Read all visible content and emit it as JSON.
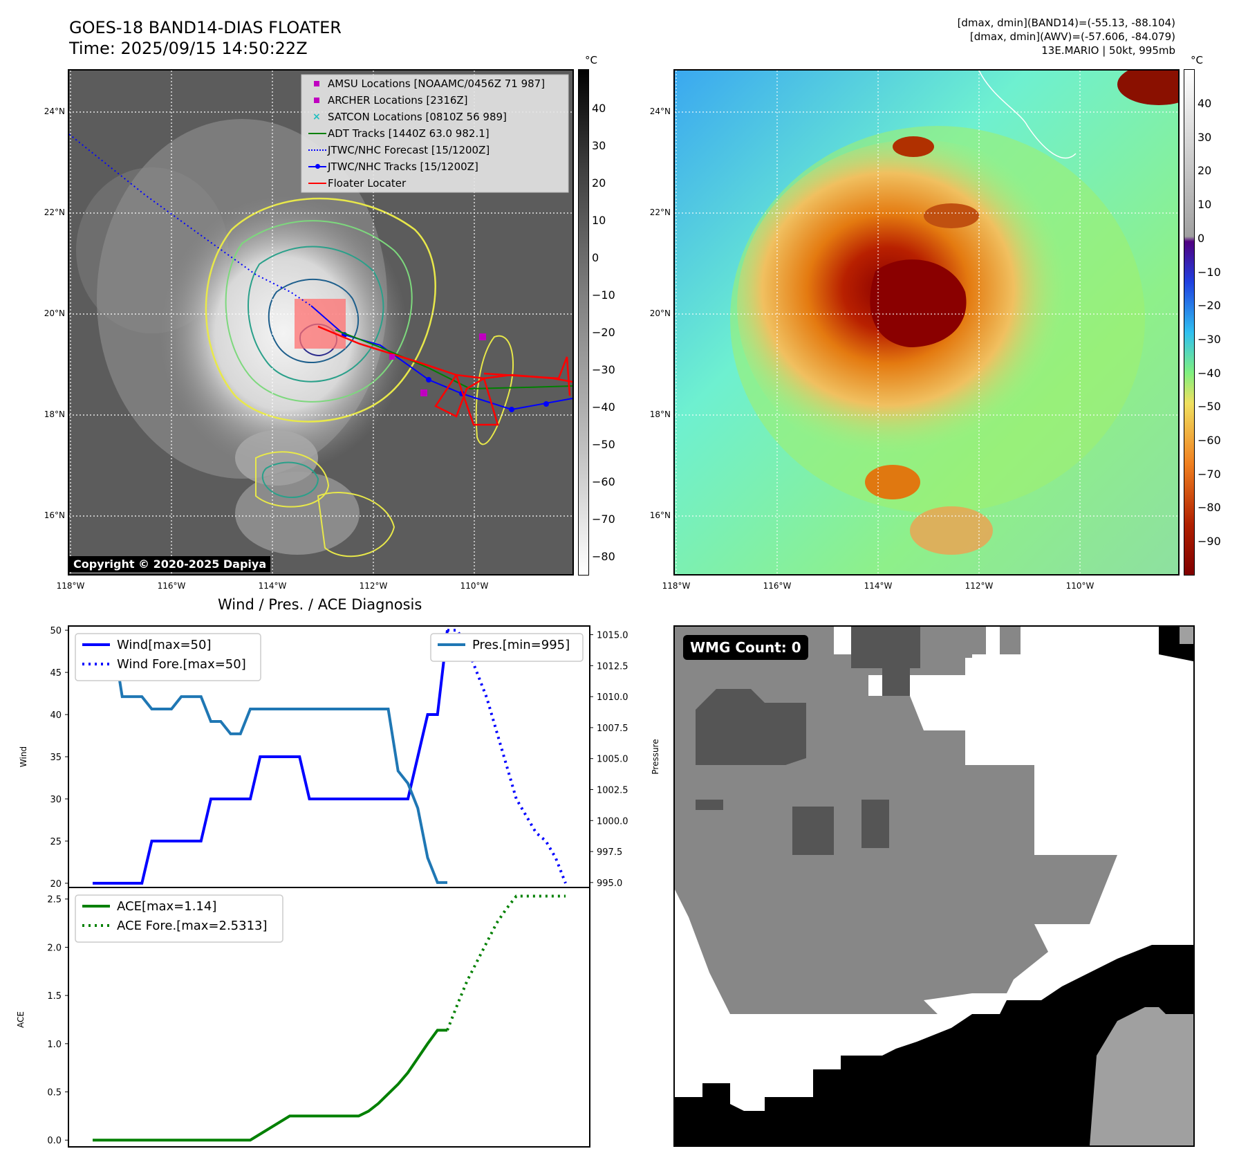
{
  "header": {
    "title_line1": "GOES-18 BAND14-DIAS FLOATER",
    "title_line2": "Time: 2025/09/15 14:50:22Z",
    "info_line1": "[dmax, dmin](BAND14)=(-55.13, -88.104)",
    "info_line2": "[dmax, dmin](AWV)=(-57.606, -84.079)",
    "info_line3": "13E.MARIO | 50kt, 995mb"
  },
  "copyright": "Copyright © 2020-2025 Dapiya",
  "colors": {
    "amsu": "#c000c0",
    "archer": "#c000c0",
    "satcon": "#20c0c0",
    "adt": "#008000",
    "jtwc_fore": "#0000ff",
    "jtwc": "#0000ff",
    "floater": "#ff0000",
    "wind": "#0000ff",
    "pres": "#1f77b4",
    "ace": "#008000"
  },
  "map": {
    "lon_ticks": [
      "118°W",
      "116°W",
      "114°W",
      "112°W",
      "110°W"
    ],
    "lat_ticks": [
      "24°N",
      "22°N",
      "20°N",
      "18°N",
      "16°N"
    ],
    "legend": [
      {
        "label": "AMSU Locations [NOAAMC/0456Z 71 987]",
        "marker": "square",
        "color": "#c000c0"
      },
      {
        "label": "ARCHER Locations [2316Z]",
        "marker": "square",
        "color": "#c000c0"
      },
      {
        "label": "SATCON Locations [0810Z 56 989]",
        "marker": "x",
        "color": "#20c0c0"
      },
      {
        "label": "ADT Tracks [1440Z 63.0 982.1]",
        "marker": "line",
        "color": "#008000"
      },
      {
        "label": "JTWC/NHC Forecast [15/1200Z]",
        "marker": "dotted",
        "color": "#0000ff"
      },
      {
        "label": "JTWC/NHC Tracks [15/1200Z]",
        "marker": "linedot",
        "color": "#0000ff"
      },
      {
        "label": "Floater Locater",
        "marker": "line",
        "color": "#ff0000"
      }
    ],
    "gray_cbar_unit": "°C",
    "gray_cbar_ticks": [
      "40",
      "30",
      "20",
      "10",
      "0",
      "−10",
      "−20",
      "−30",
      "−40",
      "−50",
      "−60",
      "−70",
      "−80"
    ],
    "color_cbar_unit": "°C",
    "color_cbar_ticks": [
      "40",
      "30",
      "20",
      "10",
      "0",
      "−10",
      "−20",
      "−30",
      "−40",
      "−50",
      "−60",
      "−70",
      "−80",
      "−90"
    ]
  },
  "chart_data": [
    {
      "type": "line",
      "title": "Wind / Pres. / ACE Diagnosis",
      "ylabel": "Wind",
      "ylim": [
        19.5,
        50.5
      ],
      "yticks": [
        "50",
        "45",
        "40",
        "35",
        "30",
        "25",
        "20"
      ],
      "y2label": "Pressure",
      "y2lim": [
        994.6,
        1015.7
      ],
      "y2ticks": [
        "1015.0",
        "1012.5",
        "1010.0",
        "1007.5",
        "1005.0",
        "1002.5",
        "1000.0",
        "997.5",
        "995.0"
      ],
      "series": [
        {
          "name": "Wind[max=50]",
          "style": "solid",
          "x": [
            0,
            5,
            6,
            11,
            12,
            16,
            17,
            21,
            22,
            23,
            24,
            32,
            33,
            34,
            35,
            36
          ],
          "values": [
            20,
            20,
            25,
            25,
            30,
            30,
            35,
            35,
            30,
            30,
            30,
            30,
            35,
            40,
            40,
            50
          ]
        },
        {
          "name": "Wind Fore.[max=50]",
          "style": "dotted",
          "x": [
            36,
            37,
            38,
            39,
            40,
            41,
            42,
            43,
            44,
            45,
            46,
            47,
            48
          ],
          "values": [
            50,
            50,
            48,
            45,
            42,
            38,
            34,
            30,
            28,
            26,
            25,
            23,
            20
          ]
        },
        {
          "name": "Pres.[min=995]",
          "style": "solid",
          "axis": "right",
          "x": [
            0,
            2,
            3,
            5,
            6,
            7,
            8,
            9,
            10,
            11,
            12,
            13,
            14,
            15,
            16,
            17,
            20,
            21,
            22,
            23,
            24,
            25,
            26,
            27,
            28,
            29,
            30,
            31,
            32,
            33,
            34,
            35,
            36
          ],
          "values": [
            1015,
            1015,
            1010,
            1010,
            1009,
            1009,
            1009,
            1010,
            1010,
            1010,
            1008,
            1008,
            1007,
            1007,
            1009,
            1009,
            1009,
            1009,
            1009,
            1009,
            1009,
            1009,
            1009,
            1009,
            1009,
            1009,
            1009,
            1004,
            1003,
            1001,
            997,
            995,
            995
          ]
        }
      ]
    },
    {
      "type": "line",
      "ylabel": "ACE",
      "ylim": [
        -0.07,
        2.62
      ],
      "yticks": [
        "2.5",
        "2.0",
        "1.5",
        "1.0",
        "0.5",
        "0.0"
      ],
      "series": [
        {
          "name": "ACE[max=1.14]",
          "style": "solid",
          "x": [
            0,
            5,
            10,
            15,
            16,
            20,
            25,
            26,
            27,
            28,
            29,
            30,
            31,
            32,
            33,
            34,
            35,
            36
          ],
          "values": [
            0,
            0,
            0,
            0,
            0,
            0.25,
            0.25,
            0.25,
            0.25,
            0.3,
            0.38,
            0.48,
            0.58,
            0.7,
            0.85,
            1.0,
            1.14,
            1.14
          ]
        },
        {
          "name": "ACE Fore.[max=2.5313]",
          "style": "dotted",
          "x": [
            36,
            37,
            38,
            39,
            40,
            41,
            42,
            43,
            44,
            45,
            46,
            47,
            48
          ],
          "values": [
            1.14,
            1.4,
            1.65,
            1.85,
            2.05,
            2.25,
            2.4,
            2.53,
            2.53,
            2.53,
            2.53,
            2.53,
            2.53
          ]
        }
      ]
    }
  ],
  "wmg": {
    "label": "WMG Count: 0"
  }
}
